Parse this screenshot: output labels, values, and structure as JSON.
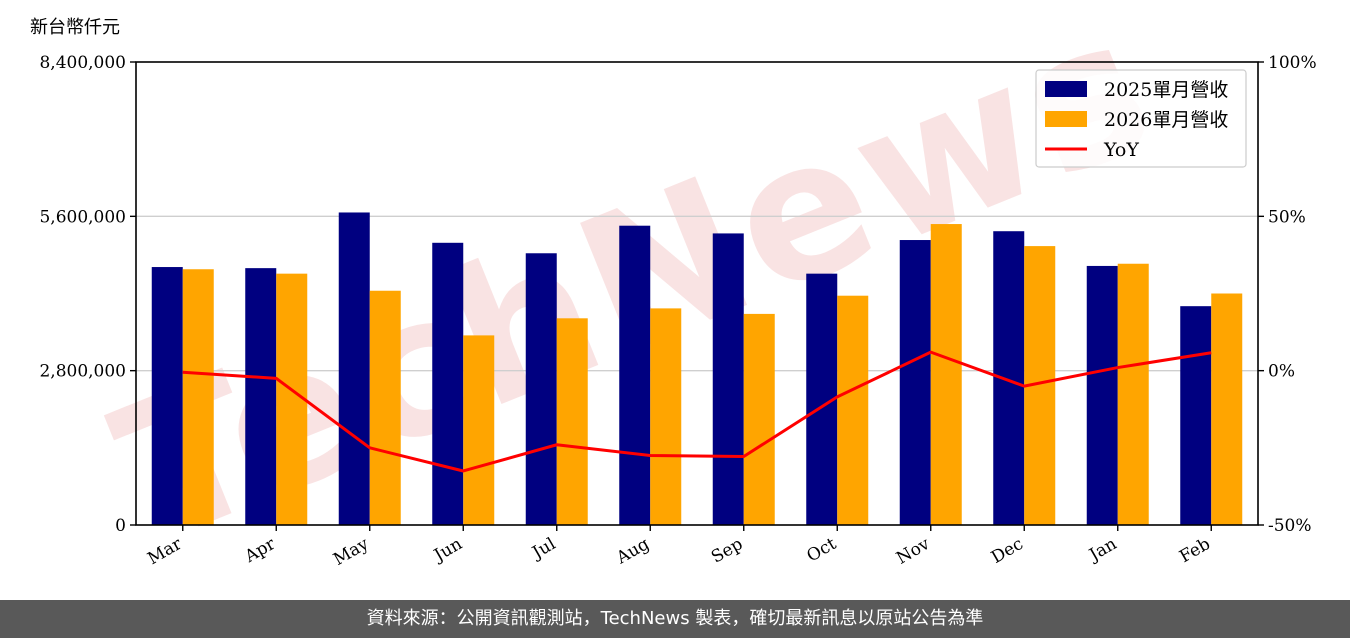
{
  "chart_data": {
    "type": "bar",
    "y_unit_label": "新台幣仟元",
    "categories": [
      "Mar",
      "Apr",
      "May",
      "Jun",
      "Jul",
      "Aug",
      "Sep",
      "Oct",
      "Nov",
      "Dec",
      "Jan",
      "Feb"
    ],
    "series": [
      {
        "name": "2025單月營收",
        "type": "bar",
        "axis": "left",
        "color": "#000080",
        "values": [
          4680000,
          4660000,
          5670000,
          5120000,
          4930000,
          5430000,
          5290000,
          4560000,
          5170000,
          5330000,
          4700000,
          3970000
        ]
      },
      {
        "name": "2026單月營收",
        "type": "bar",
        "axis": "left",
        "color": "#ffa500",
        "values": [
          4640000,
          4560000,
          4250000,
          3440000,
          3750000,
          3930000,
          3830000,
          4160000,
          5460000,
          5060000,
          4740000,
          4200000
        ]
      },
      {
        "name": "YoY",
        "type": "line",
        "axis": "right",
        "color": "#ff0000",
        "values": [
          -0.5,
          -2.5,
          -25,
          -32.5,
          -24,
          -27.5,
          -27.8,
          -8.5,
          6,
          -5,
          1,
          5.8
        ]
      }
    ],
    "y_left": {
      "min": 0,
      "max": 8400000,
      "ticks": [
        0,
        2800000,
        5600000,
        8400000
      ],
      "tick_labels": [
        "0",
        "2,800,000",
        "5,600,000",
        "8,400,000"
      ]
    },
    "y_right": {
      "min": -50,
      "max": 100,
      "ticks": [
        -50,
        0,
        50,
        100
      ],
      "tick_labels": [
        "-50%",
        "0%",
        "50%",
        "100%"
      ]
    },
    "grid": "horizontal",
    "legend_position": "top-right",
    "watermark": "TechNews"
  },
  "colors": {
    "footer_bg": "#595959",
    "watermark": "#f4cccc"
  },
  "footer": {
    "text": "資料來源：公開資訊觀測站，TechNews 製表，確切最新訊息以原站公告為準"
  }
}
